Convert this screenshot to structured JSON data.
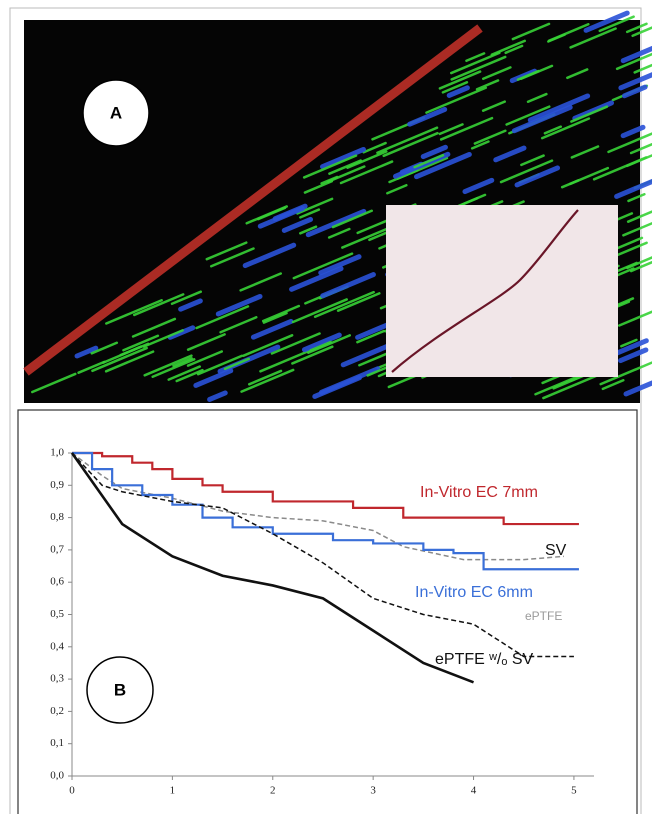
{
  "panel_a": {
    "label": "A"
  },
  "chart_data": {
    "type": "line",
    "panel_label": "B",
    "xlim": [
      0,
      5.2
    ],
    "ylim": [
      0,
      1
    ],
    "xticks": [
      0,
      1,
      2,
      3,
      4,
      5
    ],
    "yticks": [
      {
        "value": 0,
        "label": "0,0"
      },
      {
        "value": 0.1,
        "label": "0,1"
      },
      {
        "value": 0.2,
        "label": "0,2"
      },
      {
        "value": 0.3,
        "label": "0,3"
      },
      {
        "value": 0.4,
        "label": "0,4"
      },
      {
        "value": 0.5,
        "label": "0,5"
      },
      {
        "value": 0.6,
        "label": "0,6"
      },
      {
        "value": 0.7,
        "label": "0,7"
      },
      {
        "value": 0.8,
        "label": "0,8"
      },
      {
        "value": 0.9,
        "label": "0,9"
      },
      {
        "value": 1,
        "label": "1,0"
      }
    ],
    "series": [
      {
        "name": "In-Vitro EC 7mm",
        "color": "#c0272d",
        "label_color": "#c0272d",
        "dashed": false,
        "x": [
          0,
          0.3,
          0.3,
          0.6,
          0.6,
          0.8,
          0.8,
          1.0,
          1.0,
          1.3,
          1.3,
          1.5,
          1.5,
          2.0,
          2.0,
          2.8,
          2.8,
          3.3,
          3.3,
          4.3,
          4.3,
          5.05
        ],
        "values": [
          1,
          1,
          0.99,
          0.99,
          0.97,
          0.97,
          0.95,
          0.95,
          0.92,
          0.92,
          0.9,
          0.9,
          0.88,
          0.88,
          0.85,
          0.85,
          0.83,
          0.83,
          0.8,
          0.8,
          0.78,
          0.78
        ]
      },
      {
        "name": "SV",
        "color": "#8a8a8a",
        "label_color": "#111111",
        "dashed": true,
        "x": [
          0,
          0.3,
          0.5,
          1,
          1.5,
          2,
          2.5,
          3.0,
          3.3,
          3.6,
          3.9,
          4.5,
          4.9
        ],
        "values": [
          1,
          0.93,
          0.89,
          0.86,
          0.82,
          0.8,
          0.79,
          0.76,
          0.71,
          0.69,
          0.67,
          0.67,
          0.68
        ]
      },
      {
        "name": "In-Vitro EC 6mm",
        "color": "#3a6fd8",
        "label_color": "#3a6fd8",
        "dashed": false,
        "x": [
          0,
          0.2,
          0.2,
          0.4,
          0.4,
          0.7,
          0.7,
          1.0,
          1.0,
          1.3,
          1.3,
          1.6,
          1.6,
          2.0,
          2.0,
          2.6,
          2.6,
          3.0,
          3.0,
          3.5,
          3.5,
          3.8,
          3.8,
          4.1,
          4.1,
          5.05
        ],
        "values": [
          1,
          1,
          0.95,
          0.95,
          0.9,
          0.9,
          0.87,
          0.87,
          0.84,
          0.84,
          0.8,
          0.8,
          0.77,
          0.77,
          0.75,
          0.75,
          0.73,
          0.73,
          0.72,
          0.72,
          0.7,
          0.7,
          0.69,
          0.69,
          0.64,
          0.64
        ]
      },
      {
        "name": "ePTFE",
        "color": "#111111",
        "label_color": "#9a9a9a",
        "dashed": true,
        "x": [
          0,
          0.3,
          0.5,
          1,
          1.5,
          2,
          2.5,
          3,
          3.5,
          4,
          4.5,
          5
        ],
        "values": [
          1,
          0.9,
          0.88,
          0.85,
          0.83,
          0.75,
          0.66,
          0.55,
          0.5,
          0.47,
          0.37,
          0.37
        ]
      },
      {
        "name": "ePTFE ʷ/ₒ SV",
        "color": "#111111",
        "label_color": "#111111",
        "dashed": false,
        "x": [
          0,
          0.5,
          1,
          1.5,
          2,
          2.5,
          3,
          3.5,
          4
        ],
        "values": [
          1,
          0.78,
          0.68,
          0.62,
          0.59,
          0.55,
          0.45,
          0.35,
          0.29
        ]
      }
    ]
  }
}
